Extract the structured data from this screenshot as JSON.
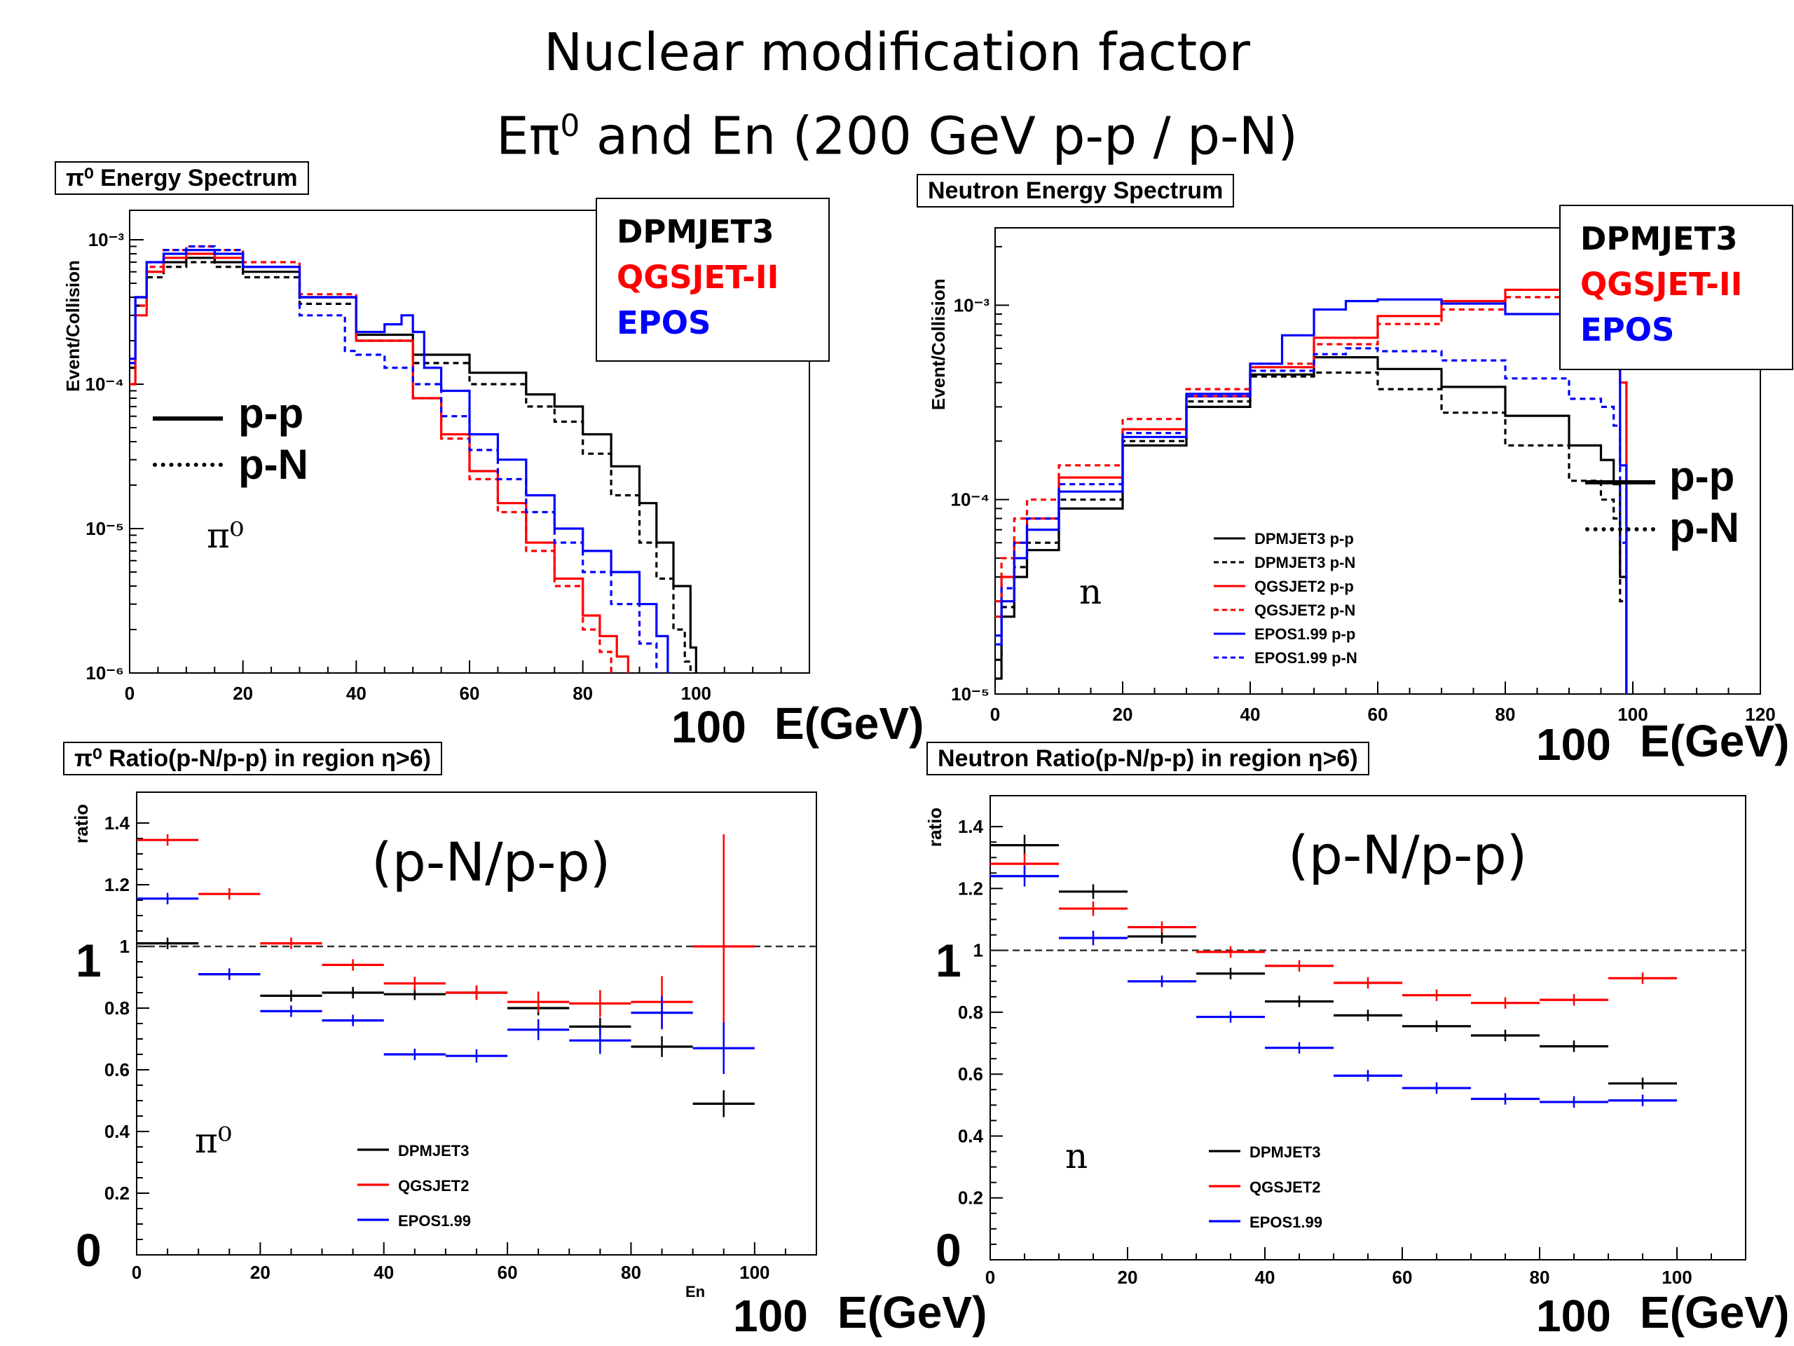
{
  "slide": {
    "title_line1": "Nuclear modification factor",
    "title_line2_pre": "Eπ",
    "title_line2_sup": "0",
    "title_line2_post": " and En (200 GeV p-p / p-N)"
  },
  "panels": {
    "pi_spectrum": {
      "title": "π⁰ Energy Spectrum",
      "legend_models": [
        "DPMJET3",
        "QGSJET-II",
        "EPOS"
      ],
      "line_pp": "p-p",
      "line_pn": "p-N",
      "particle": "π⁰",
      "annot_100": "100",
      "annot_unit": "E(GeV)"
    },
    "n_spectrum": {
      "title": "Neutron Energy Spectrum",
      "legend_models": [
        "DPMJET3",
        "QGSJET-II",
        "EPOS"
      ],
      "line_pp": "p-p",
      "line_pn": "p-N",
      "particle": "n",
      "annot_100": "100",
      "annot_unit": "E(GeV)"
    },
    "pi_ratio": {
      "title": "π⁰ Ratio(p-N/p-p) in region η>6)",
      "ratio_label": "(p-N/p-p)",
      "particle": "π⁰",
      "axis_one": "1",
      "axis_zero": "0",
      "annot_100": "100",
      "annot_unit": "E(GeV)",
      "x_small_label": "En"
    },
    "n_ratio": {
      "title": "Neutron Ratio(p-N/p-p) in region η>6)",
      "ratio_label": "(p-N/p-p)",
      "particle": "n",
      "axis_one": "1",
      "axis_zero": "0",
      "annot_100": "100",
      "annot_unit": "E(GeV)"
    }
  },
  "colors": {
    "DPMJET": "#000000",
    "QGSJET": "#ff0000",
    "EPOS": "#0000ff"
  },
  "chart_data": [
    {
      "id": "pi_spectrum",
      "type": "line",
      "title": "π⁰ Energy Spectrum",
      "ylabel": "Event/Collision",
      "xlabel": "",
      "xlim": [
        0,
        120
      ],
      "ylim": [
        1e-06,
        0.0016
      ],
      "yscale": "log",
      "x_ticks": [
        "0",
        "20",
        "40",
        "60",
        "80",
        "100"
      ],
      "y_ticks": [
        {
          "v": 0.001,
          "label": "10⁻³"
        },
        {
          "v": 0.0001,
          "label": "10⁻⁴"
        },
        {
          "v": 1e-05,
          "label": "10⁻⁵"
        },
        {
          "v": 1e-06,
          "label": "10⁻⁶"
        }
      ],
      "series": [
        {
          "name": "DPMJET3 p-p",
          "color": "#000000",
          "style": "solid",
          "x": [
            0,
            1,
            3,
            6,
            10,
            15,
            20,
            30,
            40,
            50,
            60,
            70,
            75,
            80,
            85,
            90,
            93,
            96,
            99,
            100
          ],
          "y": [
            0.00015,
            0.0004,
            0.0006,
            0.0007,
            0.00075,
            0.0007,
            0.0006,
            0.0004,
            0.00022,
            0.00016,
            0.00012,
            8.5e-05,
            7e-05,
            4.5e-05,
            2.7e-05,
            1.5e-05,
            8e-06,
            4e-06,
            1.5e-06,
            1e-06
          ]
        },
        {
          "name": "DPMJET3 p-N",
          "color": "#000000",
          "style": "dashed",
          "x": [
            0,
            1,
            3,
            6,
            10,
            15,
            20,
            30,
            40,
            50,
            60,
            70,
            75,
            80,
            85,
            90,
            93,
            96,
            98,
            99
          ],
          "y": [
            0.00013,
            0.00035,
            0.00055,
            0.00065,
            0.0007,
            0.00065,
            0.00055,
            0.00036,
            0.0002,
            0.00014,
            0.0001,
            7e-05,
            5.5e-05,
            3.3e-05,
            1.7e-05,
            8e-06,
            4.5e-06,
            2e-06,
            1.2e-06,
            1e-06
          ]
        },
        {
          "name": "QGSJET2 p-p",
          "color": "#ff0000",
          "style": "solid",
          "x": [
            0,
            1,
            3,
            6,
            10,
            15,
            20,
            30,
            40,
            50,
            55,
            60,
            65,
            70,
            75,
            80,
            83,
            86,
            88
          ],
          "y": [
            0.0001,
            0.0003,
            0.0006,
            0.00075,
            0.0008,
            0.00075,
            0.00065,
            0.0004,
            0.0002,
            8e-05,
            4.5e-05,
            2.5e-05,
            1.5e-05,
            8e-06,
            4.5e-06,
            2.5e-06,
            1.8e-06,
            1.3e-06,
            1e-06
          ]
        },
        {
          "name": "QGSJET2 p-N",
          "color": "#ff0000",
          "style": "dashed",
          "x": [
            0,
            1,
            3,
            6,
            10,
            15,
            20,
            30,
            40,
            50,
            55,
            60,
            65,
            70,
            75,
            80,
            83,
            85
          ],
          "y": [
            0.0001,
            0.00035,
            0.00065,
            0.00085,
            0.0009,
            0.00085,
            0.0007,
            0.00042,
            0.0002,
            8e-05,
            4.2e-05,
            2.2e-05,
            1.3e-05,
            7e-06,
            4e-06,
            2e-06,
            1.4e-06,
            1e-06
          ]
        },
        {
          "name": "EPOS1.99 p-p",
          "color": "#0000ff",
          "style": "solid",
          "x": [
            0,
            1,
            3,
            6,
            10,
            15,
            20,
            30,
            40,
            45,
            48,
            50,
            52,
            55,
            60,
            65,
            70,
            75,
            80,
            85,
            90,
            93,
            95
          ],
          "y": [
            0.00015,
            0.0004,
            0.0007,
            0.0008,
            0.00085,
            0.0008,
            0.00065,
            0.0004,
            0.00023,
            0.00026,
            0.0003,
            0.00023,
            0.00013,
            9e-05,
            4.5e-05,
            3e-05,
            1.7e-05,
            1e-05,
            7e-06,
            5e-06,
            3e-06,
            1.8e-06,
            1e-06
          ]
        },
        {
          "name": "EPOS1.99 p-N",
          "color": "#0000ff",
          "style": "dashed",
          "x": [
            0,
            1,
            3,
            6,
            10,
            15,
            20,
            30,
            38,
            40,
            45,
            50,
            55,
            60,
            65,
            70,
            75,
            80,
            85,
            90,
            93
          ],
          "y": [
            0.00014,
            0.0004,
            0.0007,
            0.00085,
            0.0009,
            0.00085,
            0.00065,
            0.0003,
            0.00017,
            0.00016,
            0.00013,
            0.0001,
            6e-05,
            3.5e-05,
            2.2e-05,
            1.3e-05,
            8e-06,
            5e-06,
            3e-06,
            1.6e-06,
            1e-06
          ]
        }
      ]
    },
    {
      "id": "n_spectrum",
      "type": "line",
      "title": "Neutron Energy Spectrum",
      "ylabel": "Event/Collision",
      "xlabel": "",
      "xlim": [
        0,
        120
      ],
      "ylim": [
        1e-05,
        0.0025
      ],
      "yscale": "log",
      "x_ticks": [
        "0",
        "20",
        "40",
        "60",
        "80",
        "100",
        "120"
      ],
      "y_ticks": [
        {
          "v": 0.001,
          "label": "10⁻³"
        },
        {
          "v": 0.0001,
          "label": "10⁻⁴"
        },
        {
          "v": 1e-05,
          "label": "10⁻⁵"
        }
      ],
      "series": [
        {
          "name": "DPMJET3 p-p",
          "color": "#000000",
          "style": "solid",
          "x": [
            0,
            1,
            3,
            5,
            10,
            20,
            30,
            40,
            50,
            60,
            70,
            80,
            90,
            95,
            97,
            98,
            99
          ],
          "y": [
            1.2e-05,
            2.5e-05,
            4e-05,
            5.5e-05,
            9e-05,
            0.00019,
            0.0003,
            0.00044,
            0.00054,
            0.00047,
            0.00038,
            0.00027,
            0.00019,
            0.00016,
            0.00012,
            4e-05,
            1e-05
          ]
        },
        {
          "name": "DPMJET3 p-N",
          "color": "#000000",
          "style": "dashed",
          "x": [
            0,
            1,
            3,
            5,
            10,
            20,
            30,
            40,
            50,
            60,
            70,
            80,
            90,
            95,
            97,
            98,
            99
          ],
          "y": [
            1.5e-05,
            2.8e-05,
            4.5e-05,
            6e-05,
            0.0001,
            0.0002,
            0.00032,
            0.00043,
            0.00045,
            0.00037,
            0.00028,
            0.00019,
            0.000125,
            0.0001,
            8e-05,
            3e-05,
            1e-05
          ]
        },
        {
          "name": "QGSJET2 p-p",
          "color": "#ff0000",
          "style": "solid",
          "x": [
            0,
            1,
            3,
            5,
            10,
            20,
            30,
            40,
            50,
            60,
            70,
            80,
            90,
            95,
            97,
            98,
            99
          ],
          "y": [
            2.5e-05,
            4e-05,
            6e-05,
            8e-05,
            0.00013,
            0.00023,
            0.00034,
            0.00048,
            0.00068,
            0.00088,
            0.00105,
            0.0012,
            0.00132,
            0.00135,
            0.0012,
            0.0004,
            1e-05
          ]
        },
        {
          "name": "QGSJET2 p-N",
          "color": "#ff0000",
          "style": "dashed",
          "x": [
            0,
            1,
            3,
            5,
            10,
            20,
            30,
            40,
            50,
            60,
            70,
            80,
            90,
            95,
            97,
            98,
            99
          ],
          "y": [
            3e-05,
            5e-05,
            8e-05,
            0.0001,
            0.00015,
            0.00026,
            0.00037,
            0.0005,
            0.00063,
            0.0008,
            0.00095,
            0.0011,
            0.00122,
            0.00125,
            0.0012,
            0.0004,
            1e-05
          ]
        },
        {
          "name": "EPOS1.99 p-p",
          "color": "#0000ff",
          "style": "solid",
          "x": [
            0,
            1,
            3,
            5,
            10,
            20,
            30,
            40,
            45,
            50,
            55,
            60,
            70,
            80,
            90,
            95,
            97,
            98,
            99
          ],
          "y": [
            1.8e-05,
            3e-05,
            5e-05,
            7e-05,
            0.00011,
            0.00021,
            0.00035,
            0.0005,
            0.0007,
            0.00095,
            0.00105,
            0.00107,
            0.00102,
            0.0009,
            0.00075,
            0.00068,
            0.0005,
            0.00015,
            1e-05
          ]
        },
        {
          "name": "EPOS1.99 p-N",
          "color": "#0000ff",
          "style": "dashed",
          "x": [
            0,
            1,
            3,
            5,
            10,
            20,
            30,
            40,
            50,
            55,
            60,
            70,
            80,
            90,
            95,
            97,
            98,
            99
          ],
          "y": [
            2e-05,
            3.5e-05,
            6e-05,
            8e-05,
            0.00012,
            0.00022,
            0.00034,
            0.00046,
            0.00056,
            0.0006,
            0.00058,
            0.00052,
            0.00042,
            0.00033,
            0.0003,
            0.00024,
            6e-05,
            1e-05
          ]
        }
      ],
      "legend_entries": [
        "DPMJET3 p-p",
        "DPMJET3 p-N",
        "QGSJET2 p-p",
        "QGSJET2 p-N",
        "EPOS1.99 p-p",
        "EPOS1.99 p-N"
      ]
    },
    {
      "id": "pi_ratio",
      "type": "scatter",
      "title": "π⁰ Ratio(p-N/p-p) in region η>6)",
      "ylabel": "ratio",
      "xlabel": "En",
      "xlim": [
        0,
        110
      ],
      "ylim": [
        0,
        1.5
      ],
      "x_ticks": [
        "0",
        "20",
        "40",
        "60",
        "80",
        "100"
      ],
      "y_ticks": [
        "0.2",
        "0.4",
        "0.6",
        "0.8",
        "1",
        "1.2",
        "1.4"
      ],
      "reference_line": 1.0,
      "bin_edges": [
        0,
        10,
        20,
        30,
        40,
        50,
        60,
        70,
        80,
        90,
        100
      ],
      "series": [
        {
          "name": "DPMJET3",
          "color": "#000000",
          "values": [
            1.01,
            0.91,
            0.84,
            0.85,
            0.845,
            0.85,
            0.8,
            0.74,
            0.675,
            0.49
          ],
          "errors": [
            0.005,
            0.005,
            0.005,
            0.005,
            0.005,
            0.008,
            0.01,
            0.015,
            0.02,
            0.03
          ]
        },
        {
          "name": "QGSJET2",
          "color": "#ff0000",
          "values": [
            1.345,
            1.17,
            1.01,
            0.94,
            0.88,
            0.85,
            0.82,
            0.815,
            0.82,
            1.0
          ],
          "errors": [
            0.005,
            0.005,
            0.005,
            0.005,
            0.008,
            0.01,
            0.02,
            0.03,
            0.07,
            0.35
          ]
        },
        {
          "name": "EPOS1.99",
          "color": "#0000ff",
          "values": [
            1.155,
            0.91,
            0.79,
            0.76,
            0.65,
            0.645,
            0.73,
            0.695,
            0.785,
            0.67
          ],
          "errors": [
            0.005,
            0.005,
            0.005,
            0.005,
            0.005,
            0.008,
            0.02,
            0.03,
            0.04,
            0.07
          ]
        }
      ],
      "legend_entries": [
        "DPMJET3",
        "QGSJET2",
        "EPOS1.99"
      ]
    },
    {
      "id": "n_ratio",
      "type": "scatter",
      "title": "Neutron Ratio(p-N/p-p) in region η>6)",
      "ylabel": "ratio",
      "xlabel": "",
      "xlim": [
        0,
        110
      ],
      "ylim": [
        0,
        1.5
      ],
      "x_ticks": [
        "0",
        "20",
        "40",
        "60",
        "80",
        "100"
      ],
      "y_ticks": [
        "0.2",
        "0.4",
        "0.6",
        "0.8",
        "1",
        "1.2",
        "1.4"
      ],
      "reference_line": 1.0,
      "bin_edges": [
        0,
        10,
        20,
        30,
        40,
        50,
        60,
        70,
        80,
        90,
        100
      ],
      "series": [
        {
          "name": "DPMJET3",
          "color": "#000000",
          "values": [
            1.34,
            1.19,
            1.045,
            0.925,
            0.835,
            0.79,
            0.755,
            0.725,
            0.69,
            0.57
          ],
          "errors": [
            0.02,
            0.01,
            0.01,
            0.005,
            0.005,
            0.005,
            0.005,
            0.005,
            0.005,
            0.005
          ]
        },
        {
          "name": "QGSJET2",
          "color": "#ff0000",
          "values": [
            1.28,
            1.135,
            1.075,
            0.995,
            0.95,
            0.895,
            0.855,
            0.83,
            0.84,
            0.91
          ],
          "errors": [
            0.02,
            0.01,
            0.005,
            0.005,
            0.005,
            0.005,
            0.005,
            0.005,
            0.005,
            0.005
          ]
        },
        {
          "name": "EPOS1.99",
          "color": "#0000ff",
          "values": [
            1.24,
            1.04,
            0.9,
            0.785,
            0.685,
            0.595,
            0.555,
            0.52,
            0.51,
            0.515
          ],
          "errors": [
            0.02,
            0.01,
            0.005,
            0.005,
            0.005,
            0.005,
            0.005,
            0.005,
            0.005,
            0.005
          ]
        }
      ],
      "legend_entries": [
        "DPMJET3",
        "QGSJET2",
        "EPOS1.99"
      ]
    }
  ]
}
